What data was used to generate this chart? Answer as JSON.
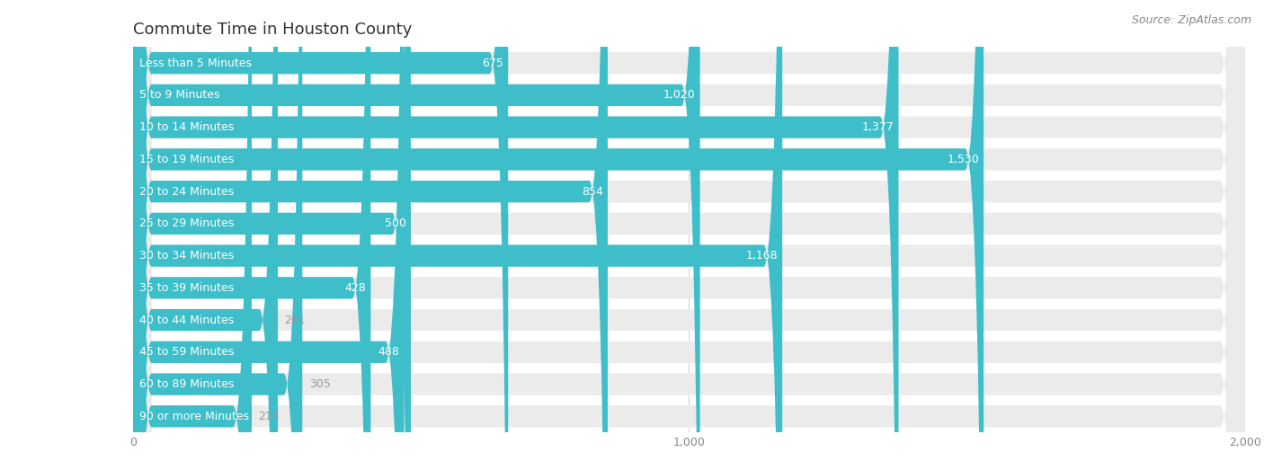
{
  "title": "Commute Time in Houston County",
  "source": "Source: ZipAtlas.com",
  "categories": [
    "Less than 5 Minutes",
    "5 to 9 Minutes",
    "10 to 14 Minutes",
    "15 to 19 Minutes",
    "20 to 24 Minutes",
    "25 to 29 Minutes",
    "30 to 34 Minutes",
    "35 to 39 Minutes",
    "40 to 44 Minutes",
    "45 to 59 Minutes",
    "60 to 89 Minutes",
    "90 or more Minutes"
  ],
  "values": [
    675,
    1020,
    1377,
    1530,
    854,
    500,
    1168,
    428,
    261,
    488,
    305,
    214
  ],
  "bar_color": "#3dbec9",
  "row_bg_color": "#ebebeb",
  "label_color_inside": "#ffffff",
  "label_color_outside": "#999999",
  "category_color_on_bar": "#333333",
  "title_color": "#333333",
  "title_fontsize": 13,
  "source_fontsize": 9,
  "tick_fontsize": 9,
  "value_fontsize": 9,
  "category_fontsize": 9,
  "xlim": [
    0,
    2000
  ],
  "xticks": [
    0,
    1000,
    2000
  ],
  "background_color": "#ffffff"
}
